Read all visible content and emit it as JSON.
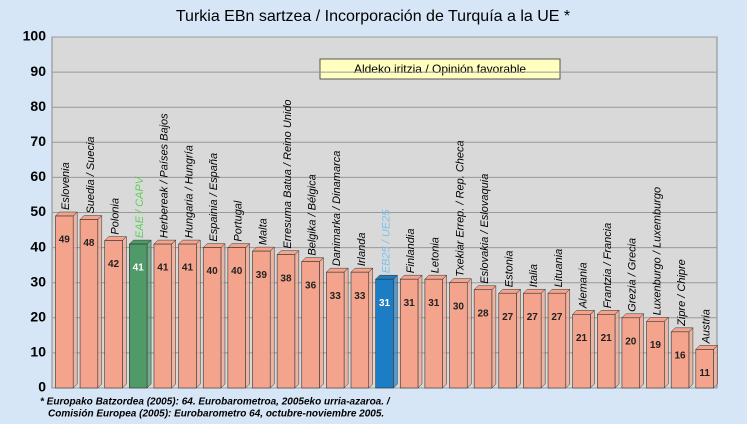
{
  "chart_data": {
    "type": "bar",
    "title": "Turkia EBn sartzea / Incorporación de Turquía a la UE *",
    "legend": "Aldeko iritzia / Opinión favorable",
    "categories": [
      "Eslovenia",
      "Suedia / Suecia",
      "Polonia",
      "EAE / CAPV",
      "Herbereak / Países Bajos",
      "Hungaria / Hungría",
      "Espainia / España",
      "Portugal",
      "Malta",
      "Erresuma Batua / Reino Unido",
      "Belgika / Bélgica",
      "Danimarka / Dinamarca",
      "Irlanda",
      "EB25 / UE25",
      "Finlandia",
      "Letonia",
      "Txekiar Errep. / Rep. Checa",
      "Eslovakia / Eslovaquia",
      "Estonia",
      "Italia",
      "Lituania",
      "Alemania",
      "Frantzia / Francia",
      "Grezia / Grecia",
      "Luxenburgo / Luxemburgo",
      "Zipre / Chipre",
      "Austria"
    ],
    "values": [
      49,
      48,
      42,
      41,
      41,
      41,
      40,
      40,
      39,
      38,
      36,
      33,
      33,
      31,
      31,
      31,
      30,
      28,
      27,
      27,
      27,
      21,
      21,
      20,
      19,
      16,
      11
    ],
    "colors": [
      "#f4a48c",
      "#f4a48c",
      "#f4a48c",
      "#4f9a68",
      "#f4a48c",
      "#f4a48c",
      "#f4a48c",
      "#f4a48c",
      "#f4a48c",
      "#f4a48c",
      "#f4a48c",
      "#f4a48c",
      "#f4a48c",
      "#1c7cc4",
      "#f4a48c",
      "#f4a48c",
      "#f4a48c",
      "#f4a48c",
      "#f4a48c",
      "#f4a48c",
      "#f4a48c",
      "#f4a48c",
      "#f4a48c",
      "#f4a48c",
      "#f4a48c",
      "#f4a48c",
      "#f4a48c"
    ],
    "ylim": [
      0,
      100
    ],
    "yticks": [
      0,
      10,
      20,
      30,
      40,
      50,
      60,
      70,
      80,
      90,
      100
    ],
    "grid": true,
    "footnote": [
      "* Europako Batzordea (2005): 64. Eurobarometroa, 2005eko urria-azaroa. /",
      "Comisión Europea (2005): Eurobarometro 64, octubre-noviembre 2005."
    ]
  }
}
